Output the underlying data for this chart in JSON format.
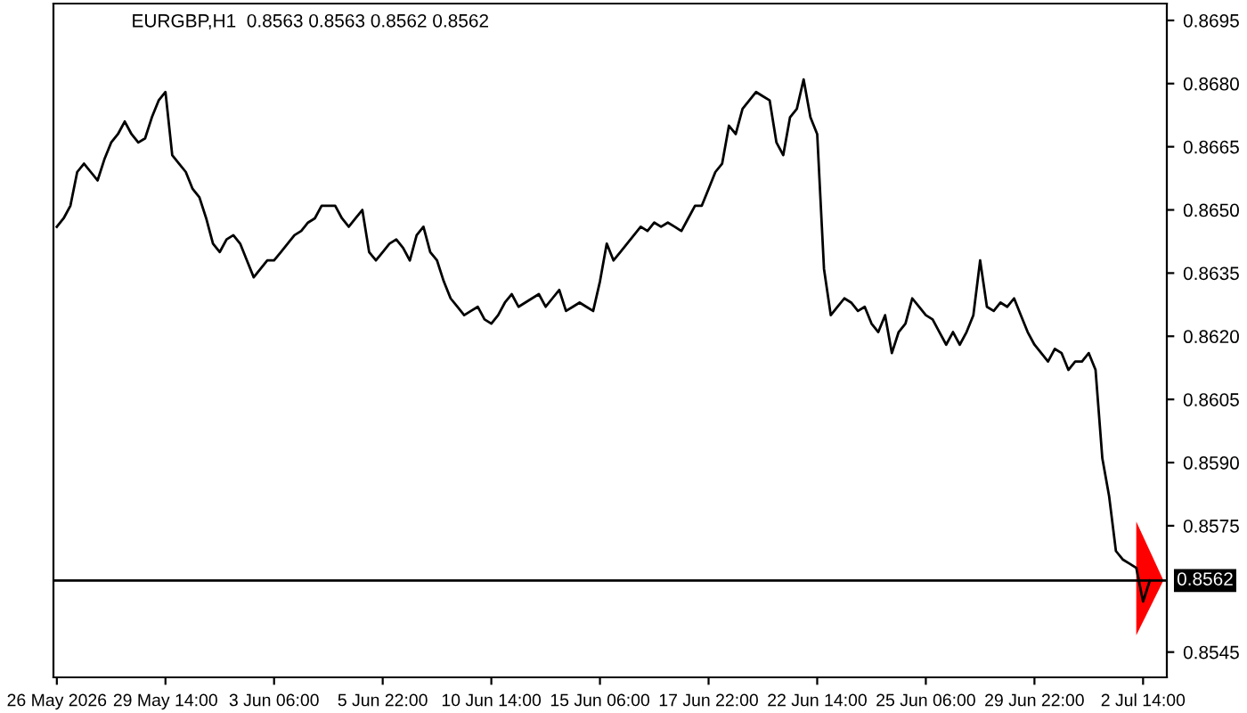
{
  "chart_data": {
    "type": "line",
    "title": "EURGBP,H1  0.8563 0.8563 0.8562 0.8562",
    "categories": [
      "26 May 2026",
      null,
      null,
      null,
      null,
      null,
      null,
      null,
      null,
      null,
      null,
      null,
      null,
      null,
      null,
      null,
      "29 May 14:00",
      null,
      null,
      null,
      null,
      null,
      null,
      null,
      null,
      null,
      null,
      null,
      null,
      null,
      null,
      null,
      "3 Jun 06:00",
      null,
      null,
      null,
      null,
      null,
      null,
      null,
      null,
      null,
      null,
      null,
      null,
      null,
      null,
      null,
      "5 Jun 22:00",
      null,
      null,
      null,
      null,
      null,
      null,
      null,
      null,
      null,
      null,
      null,
      null,
      null,
      null,
      null,
      "10 Jun 14:00",
      null,
      null,
      null,
      null,
      null,
      null,
      null,
      null,
      null,
      null,
      null,
      null,
      null,
      null,
      null,
      "15 Jun 06:00",
      null,
      null,
      null,
      null,
      null,
      null,
      null,
      null,
      null,
      null,
      null,
      null,
      null,
      null,
      null,
      "17 Jun 22:00",
      null,
      null,
      null,
      null,
      null,
      null,
      null,
      null,
      null,
      null,
      null,
      null,
      null,
      null,
      null,
      "22 Jun 14:00",
      null,
      null,
      null,
      null,
      null,
      null,
      null,
      null,
      null,
      null,
      null,
      null,
      null,
      null,
      null,
      "25 Jun 06:00",
      null,
      null,
      null,
      null,
      null,
      null,
      null,
      null,
      null,
      null,
      null,
      null,
      null,
      null,
      null,
      "29 Jun 22:00",
      null,
      null,
      null,
      null,
      null,
      null,
      null,
      null,
      null,
      null,
      null,
      null,
      null,
      null,
      null,
      "2 Jul 14:00",
      null
    ],
    "series": [
      {
        "color": "#000000",
        "values": [
          0.8646,
          0.8648,
          0.8651,
          0.8659,
          0.8661,
          0.8659,
          0.8657,
          0.8662,
          0.8666,
          0.8668,
          0.8671,
          0.8668,
          0.8666,
          0.8667,
          0.8672,
          0.8676,
          0.8678,
          0.8663,
          0.8661,
          0.8659,
          0.8655,
          0.8653,
          0.8648,
          0.8642,
          0.864,
          0.8643,
          0.8644,
          0.8642,
          0.8638,
          0.8634,
          0.8636,
          0.8638,
          0.8638,
          0.864,
          0.8642,
          0.8644,
          0.8645,
          0.8647,
          0.8648,
          0.8651,
          0.8651,
          0.8651,
          0.8648,
          0.8646,
          0.8648,
          0.865,
          0.864,
          0.8638,
          0.864,
          0.8642,
          0.8643,
          0.8641,
          0.8638,
          0.8644,
          0.8646,
          0.864,
          0.8638,
          0.8633,
          0.8629,
          0.8627,
          0.8625,
          0.8626,
          0.8627,
          0.8624,
          0.8623,
          0.8625,
          0.8628,
          0.863,
          0.8627,
          0.8628,
          0.8629,
          0.863,
          0.8627,
          0.8629,
          0.8631,
          0.8626,
          0.8627,
          0.8628,
          0.8627,
          0.8626,
          0.8633,
          0.8642,
          0.8638,
          0.864,
          0.8642,
          0.8644,
          0.8646,
          0.8645,
          0.8647,
          0.8646,
          0.8647,
          0.8646,
          0.8645,
          0.8648,
          0.8651,
          0.8651,
          0.8655,
          0.8659,
          0.8661,
          0.867,
          0.8668,
          0.8674,
          0.8676,
          0.8678,
          0.8677,
          0.8676,
          0.8666,
          0.8663,
          0.8672,
          0.8674,
          0.8681,
          0.8672,
          0.8668,
          0.8636,
          0.8625,
          0.8627,
          0.8629,
          0.8628,
          0.8626,
          0.8627,
          0.8623,
          0.8621,
          0.8625,
          0.8616,
          0.8621,
          0.8623,
          0.8629,
          0.8627,
          0.8625,
          0.8624,
          0.8621,
          0.8618,
          0.8621,
          0.8618,
          0.8621,
          0.8625,
          0.8638,
          0.8627,
          0.8626,
          0.8628,
          0.8627,
          0.8629,
          0.8625,
          0.8621,
          0.8618,
          0.8616,
          0.8614,
          0.8617,
          0.8616,
          0.8612,
          0.8614,
          0.8614,
          0.8616,
          0.8612,
          0.8591,
          0.8582,
          0.8569,
          0.8567,
          0.8566,
          0.8565,
          0.8557,
          0.8562
        ]
      }
    ],
    "ylim": [
      0.8539,
      0.8699
    ],
    "yticks": [
      0.8545,
      0.8575,
      {
        "value": 0.859,
        "label": "0.8590"
      },
      0.8605,
      {
        "value": 0.862,
        "label": "0.8620"
      },
      0.8635,
      {
        "value": 0.865,
        "label": "0.8650"
      },
      0.8665,
      {
        "value": 0.868,
        "label": "0.8680"
      },
      0.8695
    ],
    "ref_lines": [
      {
        "axis": "y",
        "value": 0.8562,
        "label": "0.8562",
        "color": "#000000"
      }
    ],
    "grid": false,
    "legend": false,
    "marker": "none",
    "line_style": "solid"
  }
}
